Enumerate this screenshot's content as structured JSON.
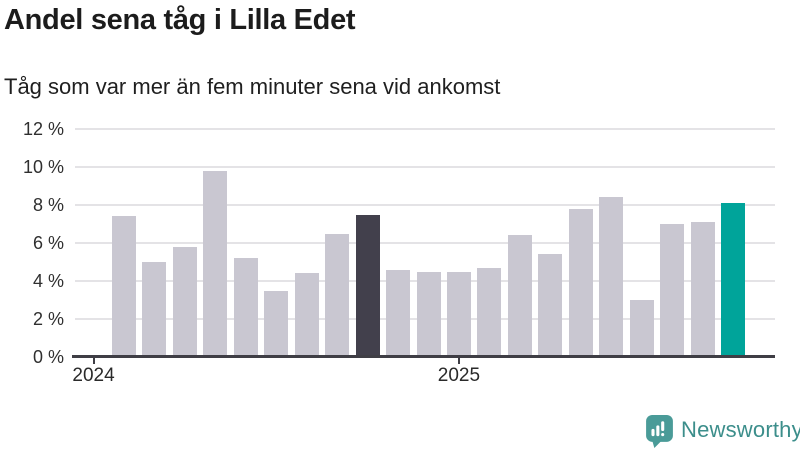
{
  "header": {
    "title": "Andel sena tåg i Lilla Edet",
    "subtitle": "Tåg som var mer än fem minuter sena vid ankomst"
  },
  "chart_data": {
    "type": "bar",
    "title": "Andel sena tåg i Lilla Edet",
    "subtitle": "Tåg som var mer än fem minuter sena vid ankomst",
    "unit": "%",
    "values": [
      7.4,
      5.0,
      5.8,
      9.8,
      5.2,
      3.5,
      4.4,
      6.5,
      7.5,
      4.6,
      4.5,
      4.5,
      4.7,
      6.4,
      5.4,
      7.8,
      8.4,
      3.0,
      7.0,
      7.1,
      8.1
    ],
    "bar_count": 21,
    "highlight_dark_index": 8,
    "highlight_accent_index": 20,
    "colors": {
      "default": "#c9c7d1",
      "dark": "#42404c",
      "accent": "#00a49a"
    },
    "y_ticks": [
      {
        "value": 12,
        "label": "12 %"
      },
      {
        "value": 10,
        "label": "10 %"
      },
      {
        "value": 8,
        "label": "8 %"
      },
      {
        "value": 6,
        "label": "6 %"
      },
      {
        "value": 4,
        "label": "4 %"
      },
      {
        "value": 2,
        "label": "2 %"
      },
      {
        "value": 0,
        "label": "0 %"
      }
    ],
    "x_ticks": [
      {
        "label": "2024",
        "slot": -1
      },
      {
        "label": "2025",
        "slot": 11
      }
    ],
    "ylim": [
      0,
      12
    ],
    "grid": true,
    "legend_position": "none"
  },
  "footer": {
    "brand": "Newsworthy",
    "brand_color": "#3c8e8b",
    "icon_color": "#4a9b98"
  }
}
